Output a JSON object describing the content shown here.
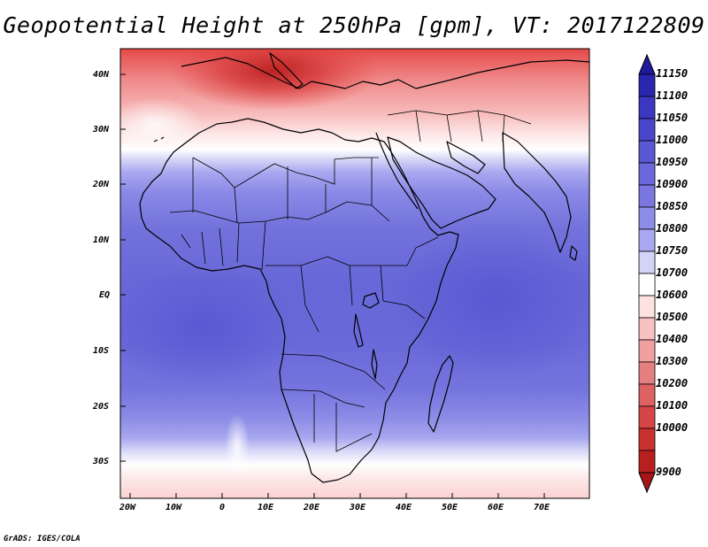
{
  "title": "Geopotential Height at 250hPa [gpm], VT: 2017122809",
  "credit": "GrADS: IGES/COLA",
  "map": {
    "variable": "Geopotential Height",
    "level": "250hPa",
    "units": "gpm",
    "valid_time": "2017122809",
    "lat_labels": [
      "40N",
      "30N",
      "20N",
      "10N",
      "EQ",
      "10S",
      "20S",
      "30S"
    ],
    "lon_labels": [
      "20W",
      "10W",
      "0",
      "10E",
      "20E",
      "30E",
      "40E",
      "50E",
      "60E",
      "70E"
    ]
  },
  "colorbar": {
    "labels": [
      "11150",
      "11100",
      "11050",
      "11000",
      "10950",
      "10900",
      "10850",
      "10800",
      "10750",
      "10700",
      "10600",
      "10500",
      "10400",
      "10300",
      "10200",
      "10100",
      "10000",
      "9900"
    ],
    "colors": [
      "#2a26b0",
      "#3b37c0",
      "#4a46ca",
      "#5a57d2",
      "#6a68da",
      "#7a78e0",
      "#8d8ce8",
      "#a9a8f0",
      "#d3d3f8",
      "#ffffff",
      "#fde2e2",
      "#f8c2c2",
      "#f0a0a0",
      "#e68080",
      "#de6262",
      "#d64545",
      "#c93030",
      "#b82020"
    ],
    "top_arrow_color": "#1f1a9e",
    "bottom_arrow_color": "#a61616"
  },
  "colors": {
    "frame": "#000000",
    "coast": "#000000",
    "background": "#ffffff"
  }
}
